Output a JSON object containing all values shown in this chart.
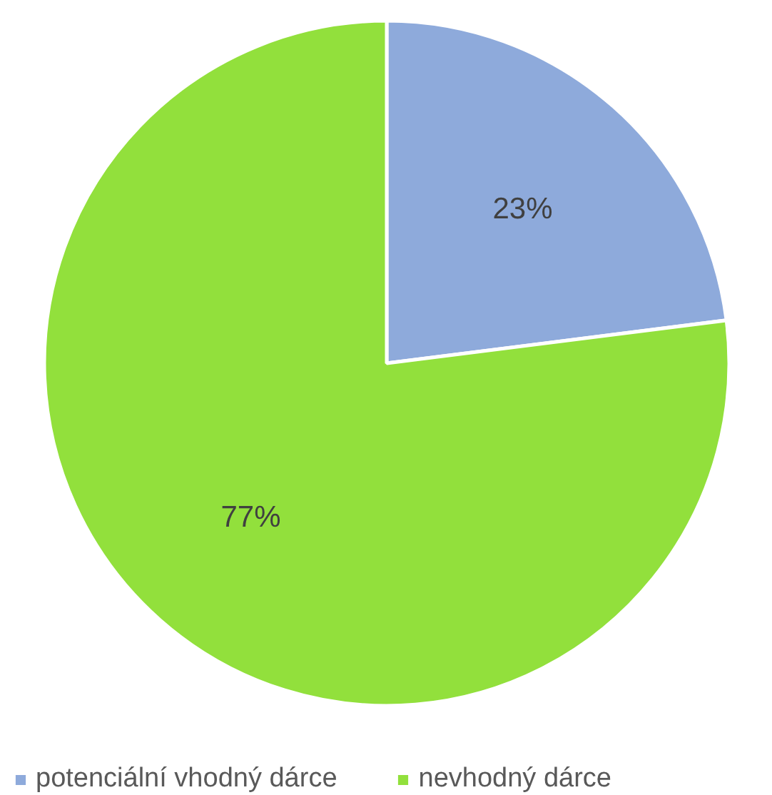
{
  "chart_data": {
    "type": "pie",
    "categories": [
      "potenciální vhodný dárce",
      "nevhodný dárce"
    ],
    "values": [
      23,
      77
    ],
    "colors": [
      "#8eaadb",
      "#92e03c"
    ],
    "value_labels": [
      "23%",
      "77%"
    ],
    "legend": "bottom"
  }
}
